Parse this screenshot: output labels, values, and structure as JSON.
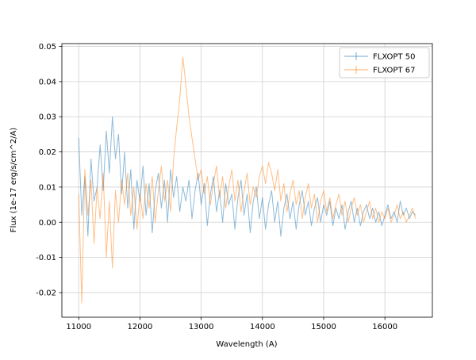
{
  "figure": {
    "background": "#ffffff"
  },
  "chart_data": {
    "type": "line",
    "title": "",
    "xlabel": "Wavelength (A)",
    "ylabel": "Flux (1e-17 erg/s/cm^2/A)",
    "grid": true,
    "legend_position": "upper right",
    "xlim": [
      10725,
      16775
    ],
    "ylim": [
      -0.027,
      0.0508
    ],
    "x_ticks": [
      11000,
      12000,
      13000,
      14000,
      15000,
      16000
    ],
    "x_tick_labels": [
      "11000",
      "12000",
      "13000",
      "14000",
      "15000",
      "16000"
    ],
    "y_ticks": [
      -0.02,
      -0.01,
      0.0,
      0.01,
      0.02,
      0.03,
      0.04,
      0.05
    ],
    "y_tick_labels": [
      "-0.02",
      "-0.01",
      "0.00",
      "0.01",
      "0.02",
      "0.03",
      "0.04",
      "0.05"
    ],
    "x_start": 11000,
    "x_step": 50,
    "grid_color": "#d0d0d0",
    "series": [
      {
        "name": "FLXOPT 50",
        "color": "#1f77b4",
        "alpha": 0.5,
        "values": [
          0.024,
          0.002,
          0.013,
          -0.004,
          0.018,
          0.006,
          0.01,
          0.022,
          0.009,
          0.026,
          0.014,
          0.03,
          0.018,
          0.025,
          0.008,
          0.02,
          0.004,
          0.015,
          -0.002,
          0.012,
          0.006,
          0.016,
          0.002,
          0.011,
          -0.003,
          0.009,
          0.014,
          0.004,
          0.012,
          0.0,
          0.015,
          0.007,
          0.013,
          0.003,
          0.01,
          0.006,
          0.012,
          0.001,
          0.009,
          0.014,
          0.005,
          0.011,
          -0.001,
          0.008,
          0.013,
          0.003,
          0.009,
          0.0,
          0.011,
          0.005,
          0.008,
          -0.002,
          0.007,
          0.012,
          0.002,
          0.008,
          -0.003,
          0.006,
          0.01,
          0.001,
          0.007,
          -0.002,
          0.005,
          0.009,
          0.0,
          0.006,
          -0.004,
          0.004,
          0.008,
          0.001,
          0.006,
          -0.002,
          0.005,
          0.009,
          0.002,
          0.006,
          -0.001,
          0.004,
          0.007,
          0.0,
          0.005,
          0.002,
          0.006,
          -0.001,
          0.004,
          0.001,
          0.005,
          -0.002,
          0.003,
          0.006,
          0.0,
          0.004,
          -0.001,
          0.003,
          0.005,
          0.001,
          0.004,
          0.0,
          0.003,
          -0.001,
          0.002,
          0.005,
          0.001,
          0.003,
          0.0,
          0.006,
          0.002,
          0.004,
          0.001,
          0.003,
          0.002
        ]
      },
      {
        "name": "FLXOPT 67",
        "color": "#ff7f0e",
        "alpha": 0.5,
        "values": [
          0.008,
          -0.023,
          0.015,
          0.002,
          0.012,
          -0.006,
          0.01,
          0.001,
          0.014,
          -0.01,
          0.006,
          -0.013,
          0.009,
          0.0,
          0.012,
          0.005,
          0.014,
          0.002,
          0.01,
          -0.002,
          0.008,
          0.001,
          0.011,
          0.004,
          0.013,
          0.0,
          0.009,
          0.016,
          0.006,
          0.012,
          0.003,
          0.018,
          0.027,
          0.035,
          0.047,
          0.039,
          0.03,
          0.024,
          0.018,
          0.012,
          0.015,
          0.008,
          0.013,
          0.005,
          0.011,
          0.016,
          0.007,
          0.013,
          0.004,
          0.01,
          0.015,
          0.006,
          0.012,
          0.003,
          0.009,
          0.014,
          0.005,
          0.01,
          0.007,
          0.013,
          0.016,
          0.011,
          0.017,
          0.014,
          0.009,
          0.015,
          0.006,
          0.011,
          0.003,
          0.008,
          0.012,
          0.005,
          0.009,
          0.001,
          0.007,
          0.011,
          0.004,
          0.008,
          0.0,
          0.006,
          0.009,
          0.003,
          0.007,
          0.001,
          0.005,
          0.008,
          0.002,
          0.006,
          0.0,
          0.004,
          0.007,
          0.002,
          0.005,
          0.0,
          0.003,
          0.006,
          0.001,
          0.004,
          0.0,
          0.003,
          0.001,
          0.004,
          0.0,
          0.002,
          0.005,
          0.001,
          0.003,
          0.0,
          0.002,
          0.004,
          0.001
        ]
      }
    ]
  }
}
